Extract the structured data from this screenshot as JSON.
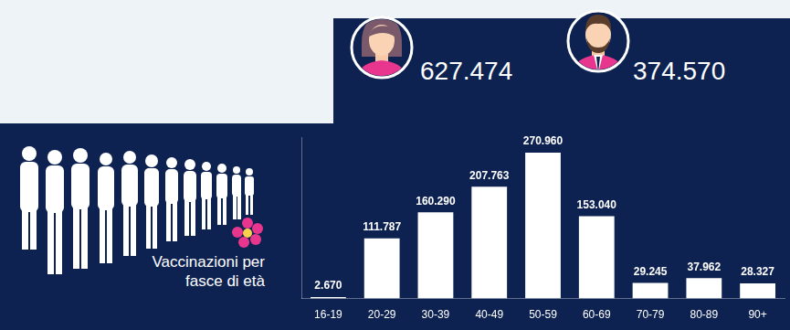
{
  "chart_data": {
    "type": "bar",
    "title": "Vaccinazioni per fasce di età",
    "annotations": [
      "627.474",
      "374.570"
    ],
    "categories": [
      "16-19",
      "20-29",
      "30-39",
      "40-49",
      "50-59",
      "60-69",
      "70-79",
      "80-89",
      "90+"
    ],
    "values": [
      2670,
      111787,
      160290,
      207763,
      270960,
      153040,
      29245,
      37962,
      28327
    ],
    "value_labels": [
      "2.670",
      "111.787",
      "160.290",
      "207.763",
      "270.960",
      "153.040",
      "29.245",
      "37.962",
      "28.327"
    ],
    "color": "#ffffff",
    "ylim": [
      0,
      300000
    ],
    "grid": false,
    "data_labels": true,
    "tick_labels": "x"
  }
}
